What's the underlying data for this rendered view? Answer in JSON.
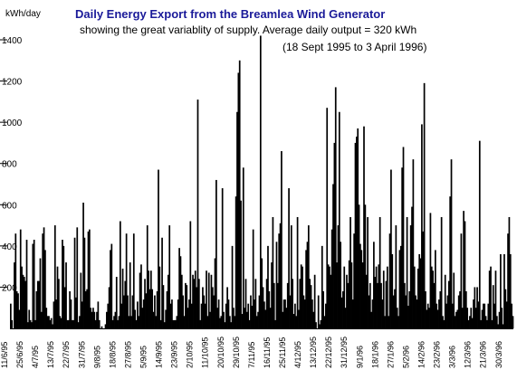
{
  "chart_data": {
    "type": "bar",
    "title": "Daily Energy Export from the Breamlea Wind Generator",
    "subtitle_line1": "showing the great variablity of supply.   Average daily output = 320 kWh",
    "subtitle_line2": "(18 Sept 1995 to 3 April 1996)",
    "ylabel": "kWh/day",
    "ylim": [
      0,
      1400
    ],
    "yticks": [
      200,
      400,
      600,
      800,
      1000,
      1200,
      1400
    ],
    "x_tick_labels": [
      "11/6/95",
      "25/6/95",
      "4/7/95",
      "13/7/95",
      "22/7/95",
      "31/7/95",
      "9/8/95",
      "18/8/95",
      "27/8/95",
      "5/9/95",
      "14/9/95",
      "23/9/95",
      "2/10/95",
      "11/10/95",
      "20/10/95",
      "29/10/95",
      "7/11/95",
      "16/11/95",
      "25/11/95",
      "4/12/95",
      "13/12/95",
      "22/12/95",
      "31/12/95",
      "9/1/96",
      "18/1/96",
      "27/1/96",
      "5/2/96",
      "14/2/96",
      "23/2/96",
      "3/3/96",
      "12/3/96",
      "21/3/96",
      "30/3/96"
    ],
    "values": [
      120,
      40,
      0,
      320,
      460,
      180,
      170,
      90,
      480,
      300,
      260,
      250,
      230,
      430,
      30,
      90,
      40,
      30,
      410,
      430,
      40,
      180,
      230,
      230,
      340,
      80,
      460,
      490,
      380,
      100,
      60,
      60,
      40,
      50,
      20,
      130,
      500,
      140,
      300,
      240,
      60,
      50,
      430,
      400,
      200,
      320,
      40,
      40,
      180,
      140,
      40,
      40,
      440,
      150,
      490,
      30,
      60,
      270,
      130,
      610,
      440,
      180,
      190,
      470,
      480,
      100,
      80,
      100,
      80,
      40,
      80,
      130,
      40,
      0,
      10,
      0,
      0,
      20,
      80,
      120,
      200,
      380,
      410,
      40,
      60,
      80,
      250,
      40,
      60,
      520,
      120,
      290,
      160,
      230,
      460,
      160,
      60,
      320,
      60,
      160,
      460,
      90,
      40,
      130,
      60,
      270,
      310,
      100,
      140,
      240,
      170,
      500,
      280,
      190,
      280,
      190,
      80,
      160,
      60,
      180,
      770,
      300,
      40,
      440,
      210,
      30,
      90,
      180,
      260,
      500,
      120,
      140,
      40,
      40,
      40,
      60,
      140,
      390,
      350,
      260,
      160,
      60,
      220,
      210,
      100,
      140,
      520,
      120,
      260,
      240,
      280,
      200,
      1110,
      240,
      40,
      120,
      200,
      160,
      120,
      280,
      60,
      270,
      80,
      260,
      200,
      160,
      340,
      720,
      100,
      140,
      50,
      60,
      680,
      80,
      30,
      120,
      200,
      140,
      60,
      30,
      400,
      100,
      60,
      640,
      1050,
      1240,
      1300,
      620,
      70,
      780,
      100,
      240,
      80,
      120,
      40,
      160,
      110,
      480,
      140,
      240,
      60,
      80,
      160,
      1420,
      340,
      200,
      130,
      90,
      240,
      400,
      180,
      100,
      320,
      540,
      220,
      40,
      420,
      220,
      460,
      510,
      860,
      80,
      140,
      140,
      100,
      220,
      680,
      160,
      500,
      240,
      70,
      120,
      60,
      540,
      90,
      240,
      310,
      300,
      160,
      140,
      380,
      420,
      500,
      240,
      210,
      140,
      80,
      260,
      30,
      0,
      160,
      20,
      40,
      400,
      180,
      60,
      120,
      1070,
      310,
      300,
      260,
      480,
      700,
      900,
      1170,
      320,
      500,
      1050,
      420,
      150,
      180,
      300,
      100,
      260,
      220,
      330,
      540,
      320,
      140,
      460,
      900,
      930,
      970,
      600,
      410,
      380,
      320,
      980,
      600,
      260,
      540,
      160,
      220,
      80,
      140,
      420,
      250,
      300,
      220,
      310,
      540,
      220,
      140,
      280,
      60,
      230,
      300,
      60,
      460,
      770,
      360,
      160,
      190,
      500,
      100,
      60,
      380,
      400,
      780,
      880,
      220,
      160,
      540,
      110,
      180,
      500,
      590,
      820,
      300,
      160,
      140,
      290,
      360,
      340,
      990,
      470,
      1190,
      180,
      90,
      120,
      100,
      560,
      300,
      280,
      220,
      380,
      120,
      90,
      140,
      180,
      540,
      60,
      40,
      260,
      120,
      160,
      230,
      640,
      820,
      120,
      270,
      60,
      80,
      90,
      160,
      180,
      460,
      100,
      570,
      520,
      180,
      100,
      40,
      60,
      100,
      50,
      140,
      200,
      100,
      200,
      130,
      910,
      40,
      90,
      120,
      120,
      60,
      40,
      120,
      280,
      300,
      40,
      210,
      120,
      280,
      60,
      20,
      80,
      360,
      100,
      20,
      360,
      190,
      130,
      460,
      540,
      360,
      120,
      60
    ],
    "avg_kwh": 320
  },
  "colors": {
    "bars": "#000000",
    "title": "#1a1a99",
    "axis": "#000000"
  }
}
